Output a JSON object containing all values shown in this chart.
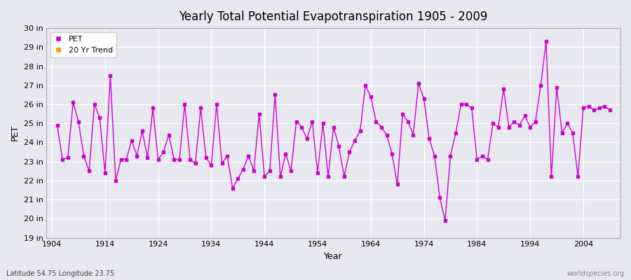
{
  "title": "Yearly Total Potential Evapotranspiration 1905 - 2009",
  "xlabel": "Year",
  "ylabel": "PET",
  "bottom_left_label": "Latitude 54.75 Longitude 23.75",
  "bottom_right_label": "worldspecies.org",
  "background_color": "#e8e8f0",
  "plot_bg_color": "#e8e8f0",
  "line_color": "#cc00cc",
  "trend_color": "#ff9900",
  "ylim": [
    19,
    30
  ],
  "yticks": [
    19,
    20,
    21,
    22,
    23,
    24,
    25,
    26,
    27,
    28,
    29,
    30
  ],
  "ytick_labels": [
    "19 in",
    "20 in",
    "21 in",
    "22 in",
    "23 in",
    "24 in",
    "25 in",
    "26 in",
    "27 in",
    "28 in",
    "29 in",
    "30 in"
  ],
  "xlim": [
    1903,
    2011
  ],
  "xticks": [
    1904,
    1914,
    1924,
    1934,
    1944,
    1954,
    1964,
    1974,
    1984,
    1994,
    2004
  ],
  "years": [
    1905,
    1906,
    1907,
    1908,
    1909,
    1910,
    1911,
    1912,
    1913,
    1914,
    1915,
    1916,
    1917,
    1918,
    1919,
    1920,
    1921,
    1922,
    1923,
    1924,
    1925,
    1926,
    1927,
    1928,
    1929,
    1930,
    1931,
    1932,
    1933,
    1934,
    1935,
    1936,
    1937,
    1938,
    1939,
    1940,
    1941,
    1942,
    1943,
    1944,
    1945,
    1946,
    1947,
    1948,
    1949,
    1950,
    1951,
    1952,
    1953,
    1954,
    1955,
    1956,
    1957,
    1958,
    1959,
    1960,
    1961,
    1962,
    1963,
    1964,
    1965,
    1966,
    1967,
    1968,
    1969,
    1970,
    1971,
    1972,
    1973,
    1974,
    1975,
    1976,
    1977,
    1978,
    1979,
    1980,
    1981,
    1982,
    1983,
    1984,
    1985,
    1986,
    1987,
    1988,
    1989,
    1990,
    1991,
    1992,
    1993,
    1994,
    1995,
    1996,
    1997,
    1998,
    1999,
    2000,
    2001,
    2002,
    2003,
    2004,
    2005,
    2006,
    2007,
    2008,
    2009
  ],
  "pet": [
    24.9,
    23.1,
    23.2,
    26.1,
    25.1,
    23.3,
    22.5,
    26.0,
    25.3,
    22.4,
    27.5,
    22.0,
    23.1,
    23.1,
    24.1,
    23.3,
    24.6,
    23.2,
    25.8,
    23.1,
    23.5,
    24.4,
    23.1,
    23.1,
    26.0,
    23.1,
    22.9,
    25.8,
    23.2,
    22.8,
    26.0,
    22.9,
    23.3,
    21.6,
    22.1,
    22.6,
    23.3,
    22.5,
    25.5,
    22.2,
    22.5,
    26.5,
    22.2,
    23.4,
    22.5,
    25.1,
    24.8,
    24.2,
    25.1,
    22.4,
    25.0,
    22.2,
    24.8,
    23.8,
    22.2,
    23.5,
    24.1,
    24.6,
    27.0,
    26.4,
    25.1,
    24.8,
    24.4,
    23.4,
    21.8,
    25.5,
    25.1,
    24.4,
    27.1,
    26.3,
    24.2,
    23.3,
    21.1,
    19.9,
    23.3,
    24.5,
    26.0,
    26.0,
    25.8,
    23.1,
    23.3,
    23.1,
    25.0,
    24.8,
    26.8,
    24.8,
    25.1,
    24.9,
    25.4,
    24.8,
    25.1,
    27.0,
    29.3,
    22.2,
    26.9,
    24.5,
    25.0,
    24.5,
    22.2,
    25.8,
    25.9,
    25.7,
    25.8,
    25.9,
    25.7
  ]
}
